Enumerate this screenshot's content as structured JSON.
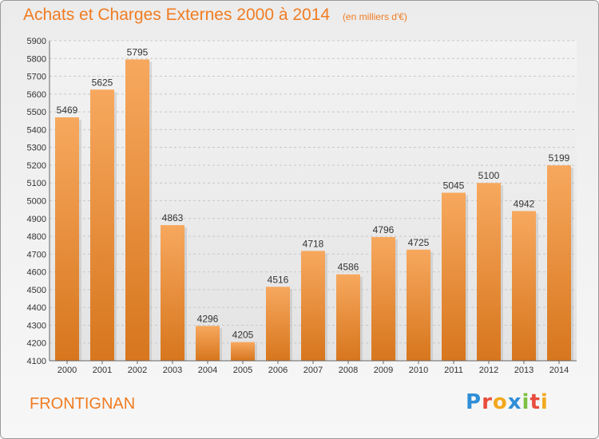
{
  "header": {
    "title": "Achats et Charges Externes 2000 à 2014",
    "subtitle": "(en milliers d'€)"
  },
  "footer": {
    "commune": "FRONTIGNAN",
    "logo": "Proxiti"
  },
  "colors": {
    "accent": "#f07c22",
    "bar_top": "#f6a45a",
    "bar_bottom": "#d9781e"
  },
  "chart_data": {
    "type": "bar",
    "title": "Achats et Charges Externes 2000 à 2014",
    "subtitle": "(en milliers d'€)",
    "categories": [
      "2000",
      "2001",
      "2002",
      "2003",
      "2004",
      "2005",
      "2006",
      "2007",
      "2008",
      "2009",
      "2010",
      "2011",
      "2012",
      "2013",
      "2014"
    ],
    "values": [
      5469,
      5625,
      5795,
      4863,
      4296,
      4205,
      4516,
      4718,
      4586,
      4796,
      4725,
      5045,
      5100,
      4942,
      5199
    ],
    "ylim": [
      4100,
      5900
    ],
    "yticks": [
      4100,
      4200,
      4300,
      4400,
      4500,
      4600,
      4700,
      4800,
      4900,
      5000,
      5100,
      5200,
      5300,
      5400,
      5500,
      5600,
      5700,
      5800,
      5900
    ],
    "grid": true,
    "xlabel": "",
    "ylabel": ""
  }
}
